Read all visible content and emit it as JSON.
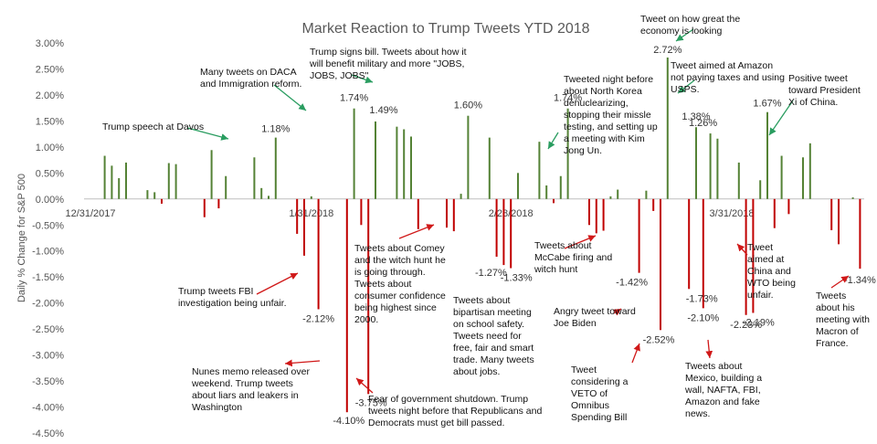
{
  "chart_data": {
    "type": "bar",
    "title": "Market Reaction to Trump Tweets YTD 2018",
    "xlabel": "",
    "ylabel": "Daily % Change for S&P 500",
    "ylim": [
      -4.5,
      3.0
    ],
    "yticks": [
      3.0,
      2.5,
      2.0,
      1.5,
      1.0,
      0.5,
      0.0,
      -0.5,
      -1.0,
      -1.5,
      -2.0,
      -2.5,
      -3.0,
      -3.5,
      -4.0,
      -4.5
    ],
    "ytick_labels": [
      "3.00%",
      "2.50%",
      "2.00%",
      "1.50%",
      "1.00%",
      "0.50%",
      "0.00%",
      "-0.50%",
      "-1.00%",
      "-1.50%",
      "-2.00%",
      "-2.50%",
      "-3.00%",
      "-3.50%",
      "-4.00%",
      "-4.50%"
    ],
    "x_range_days": [
      0,
      99
    ],
    "xticks": [
      {
        "day": 0,
        "label": "12/31/2017"
      },
      {
        "day": 31,
        "label": "1/31/2018"
      },
      {
        "day": 59,
        "label": "2/28/2018"
      },
      {
        "day": 90,
        "label": "3/31/2018"
      }
    ],
    "positive_color": "#548235",
    "negative_color": "#c00000",
    "arrow_color_pos": "#2a9d60",
    "arrow_color_neg": "#d01818",
    "bars": [
      {
        "day": 2,
        "value": 0.83
      },
      {
        "day": 3,
        "value": 0.64
      },
      {
        "day": 4,
        "value": 0.4
      },
      {
        "day": 5,
        "value": 0.7
      },
      {
        "day": 8,
        "value": 0.17
      },
      {
        "day": 9,
        "value": 0.13
      },
      {
        "day": 10,
        "value": -0.09
      },
      {
        "day": 11,
        "value": 0.69
      },
      {
        "day": 12,
        "value": 0.67
      },
      {
        "day": 16,
        "value": -0.35
      },
      {
        "day": 17,
        "value": 0.94
      },
      {
        "day": 18,
        "value": -0.18
      },
      {
        "day": 19,
        "value": 0.44
      },
      {
        "day": 23,
        "value": 0.8
      },
      {
        "day": 24,
        "value": 0.21
      },
      {
        "day": 25,
        "value": 0.06
      },
      {
        "day": 26,
        "value": 1.18
      },
      {
        "day": 29,
        "value": -0.67
      },
      {
        "day": 30,
        "value": -1.09
      },
      {
        "day": 31,
        "value": 0.05
      },
      {
        "day": 32,
        "value": -2.12
      },
      {
        "day": 36,
        "value": -4.1
      },
      {
        "day": 37,
        "value": 1.74
      },
      {
        "day": 38,
        "value": -0.5
      },
      {
        "day": 39,
        "value": -3.75
      },
      {
        "day": 40,
        "value": 1.49
      },
      {
        "day": 43,
        "value": 1.39
      },
      {
        "day": 44,
        "value": 1.34
      },
      {
        "day": 45,
        "value": 1.2
      },
      {
        "day": 46,
        "value": -0.58
      },
      {
        "day": 50,
        "value": -0.55
      },
      {
        "day": 51,
        "value": -0.62
      },
      {
        "day": 52,
        "value": 0.1
      },
      {
        "day": 53,
        "value": 1.6
      },
      {
        "day": 56,
        "value": 1.18
      },
      {
        "day": 57,
        "value": -1.11
      },
      {
        "day": 58,
        "value": -1.27
      },
      {
        "day": 59,
        "value": -1.33
      },
      {
        "day": 60,
        "value": 0.5
      },
      {
        "day": 63,
        "value": 1.1
      },
      {
        "day": 64,
        "value": 0.26
      },
      {
        "day": 65,
        "value": -0.08
      },
      {
        "day": 66,
        "value": 0.44
      },
      {
        "day": 67,
        "value": 1.74
      },
      {
        "day": 70,
        "value": -0.5
      },
      {
        "day": 71,
        "value": -0.66
      },
      {
        "day": 72,
        "value": -0.61
      },
      {
        "day": 73,
        "value": 0.05
      },
      {
        "day": 74,
        "value": 0.18
      },
      {
        "day": 77,
        "value": -1.42
      },
      {
        "day": 78,
        "value": 0.16
      },
      {
        "day": 79,
        "value": -0.23
      },
      {
        "day": 80,
        "value": -2.52
      },
      {
        "day": 81,
        "value": 2.72
      },
      {
        "day": 84,
        "value": -1.73
      },
      {
        "day": 85,
        "value": 1.38
      },
      {
        "day": 86,
        "value": -2.1
      },
      {
        "day": 87,
        "value": 1.26
      },
      {
        "day": 88,
        "value": 1.16
      },
      {
        "day": 91,
        "value": 0.7
      },
      {
        "day": 92,
        "value": -2.23
      },
      {
        "day": 93,
        "value": -2.19
      },
      {
        "day": 94,
        "value": 0.36
      },
      {
        "day": 95,
        "value": 1.67
      },
      {
        "day": 96,
        "value": -0.56
      },
      {
        "day": 97,
        "value": 0.83
      },
      {
        "day": 98,
        "value": -0.29
      },
      {
        "day": 100,
        "value": 0.8
      },
      {
        "day": 101,
        "value": 1.07
      },
      {
        "day": 104,
        "value": -0.6
      },
      {
        "day": 105,
        "value": -0.87
      },
      {
        "day": 107,
        "value": 0.03
      },
      {
        "day": 108,
        "value": -1.34
      }
    ],
    "data_labels": [
      {
        "text": "1.18%",
        "day": 26,
        "value": 1.18
      },
      {
        "text": "1.74%",
        "day": 37,
        "value": 1.74
      },
      {
        "text": "1.49%",
        "day": 40,
        "value": 1.49
      },
      {
        "text": "1.60%",
        "day": 53,
        "value": 1.6
      },
      {
        "text": "1.74%",
        "day": 67,
        "value": 1.74
      },
      {
        "text": "2.72%",
        "day": 81,
        "value": 2.72
      },
      {
        "text": "1.38%",
        "day": 85,
        "value": 1.38
      },
      {
        "text": "1.26%",
        "day": 87,
        "value": 1.26
      },
      {
        "text": "1.67%",
        "day": 95,
        "value": 1.67
      },
      {
        "text": "-2.12%",
        "day": 32,
        "value": -2.12
      },
      {
        "text": "-4.10%",
        "day": 36,
        "value": -4.1
      },
      {
        "text": "-3.75%",
        "day": 39,
        "value": -3.75
      },
      {
        "text": "-1.27%",
        "day": 58,
        "value": -1.27
      },
      {
        "text": "-1.33%",
        "day": 59,
        "value": -1.33
      },
      {
        "text": "-1.42%",
        "day": 77,
        "value": -1.42
      },
      {
        "text": "-2.52%",
        "day": 80,
        "value": -2.52
      },
      {
        "text": "-1.73%",
        "day": 84,
        "value": -1.73
      },
      {
        "text": "-2.10%",
        "day": 86,
        "value": -2.1
      },
      {
        "text": "-2.23%",
        "day": 92,
        "value": -2.23
      },
      {
        "text": "-2.19%",
        "day": 93,
        "value": -2.19
      },
      {
        "text": "-1.34%",
        "day": 108,
        "value": -1.34
      }
    ],
    "annotations": [
      {
        "id": "davos",
        "text": "Trump speech at Davos"
      },
      {
        "id": "daca",
        "text": "Many tweets on DACA and Immigration reform."
      },
      {
        "id": "signs-bill",
        "text": "Trump signs bill. Tweets about how it will benefit military and more \"JOBS, JOBS, JOBS\""
      },
      {
        "id": "north-korea",
        "text": "Tweeted night before about North Korea denuclearizing, stopping their missle testing, and setting up a meeting with Kim Jong Un."
      },
      {
        "id": "economy",
        "text": "Tweet on how great the economy is looking"
      },
      {
        "id": "amazon",
        "text": "Tweet aimed at Amazon not paying taxes and using USPS."
      },
      {
        "id": "xi",
        "text": "Positive tweet toward President Xi of China."
      },
      {
        "id": "fbi",
        "text": "Trump tweets FBI investigation being unfair."
      },
      {
        "id": "nunes",
        "text": "Nunes memo released over weekend. Trump tweets about liars and leakers in Washington"
      },
      {
        "id": "shutdown",
        "text": "Fear of government shutdown. Trump tweets night before that Republicans and Democrats must get bill passed."
      },
      {
        "id": "comey",
        "text": "Tweets about Comey and the witch hunt he is going through. Tweets about consumer confidence being highest since 2000."
      },
      {
        "id": "school",
        "text": "Tweets about bipartisan meeting on school safety. Tweets need for free, fair and smart trade. Many tweets about jobs."
      },
      {
        "id": "mccabe",
        "text": "Tweets  about McCabe firing and witch hunt"
      },
      {
        "id": "biden",
        "text": "Angry tweet toward Joe Biden"
      },
      {
        "id": "veto",
        "text": "Tweet considering a VETO of Omnibus Spending Bill"
      },
      {
        "id": "mexico",
        "text": "Tweets about Mexico, building a wall, NAFTA, FBI, Amazon and fake news."
      },
      {
        "id": "wto",
        "text": "Tweet aimed at China and WTO being unfair."
      },
      {
        "id": "macron",
        "text": "Tweets about his meeting with Macron of France."
      }
    ]
  }
}
